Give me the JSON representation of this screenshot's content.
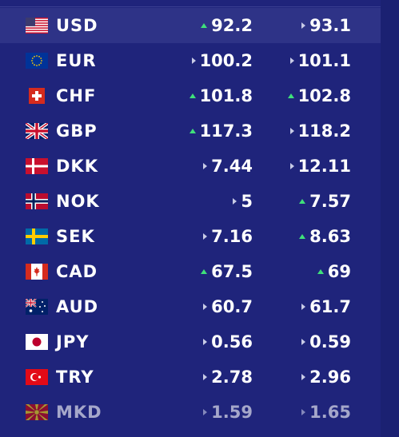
{
  "rates": [
    {
      "code": "USD",
      "flag": "flag-us-icon",
      "buy": "92.2",
      "buy_trend": "up",
      "sell": "93.1",
      "sell_trend": "flat",
      "highlighted": true
    },
    {
      "code": "EUR",
      "flag": "flag-eu-icon",
      "buy": "100.2",
      "buy_trend": "flat",
      "sell": "101.1",
      "sell_trend": "flat"
    },
    {
      "code": "CHF",
      "flag": "flag-ch-icon",
      "buy": "101.8",
      "buy_trend": "up",
      "sell": "102.8",
      "sell_trend": "up"
    },
    {
      "code": "GBP",
      "flag": "flag-gb-icon",
      "buy": "117.3",
      "buy_trend": "up",
      "sell": "118.2",
      "sell_trend": "flat"
    },
    {
      "code": "DKK",
      "flag": "flag-dk-icon",
      "buy": "7.44",
      "buy_trend": "flat",
      "sell": "12.11",
      "sell_trend": "flat"
    },
    {
      "code": "NOK",
      "flag": "flag-no-icon",
      "buy": "5",
      "buy_trend": "flat",
      "sell": "7.57",
      "sell_trend": "up"
    },
    {
      "code": "SEK",
      "flag": "flag-se-icon",
      "buy": "7.16",
      "buy_trend": "flat",
      "sell": "8.63",
      "sell_trend": "up"
    },
    {
      "code": "CAD",
      "flag": "flag-ca-icon",
      "buy": "67.5",
      "buy_trend": "up",
      "sell": "69",
      "sell_trend": "up"
    },
    {
      "code": "AUD",
      "flag": "flag-au-icon",
      "buy": "60.7",
      "buy_trend": "flat",
      "sell": "61.7",
      "sell_trend": "flat"
    },
    {
      "code": "JPY",
      "flag": "flag-jp-icon",
      "buy": "0.56",
      "buy_trend": "flat",
      "sell": "0.59",
      "sell_trend": "flat"
    },
    {
      "code": "TRY",
      "flag": "flag-tr-icon",
      "buy": "2.78",
      "buy_trend": "flat",
      "sell": "2.96",
      "sell_trend": "flat"
    },
    {
      "code": "MKD",
      "flag": "flag-mk-icon",
      "buy": "1.59",
      "buy_trend": "flat",
      "sell": "1.65",
      "sell_trend": "flat",
      "faded": true
    }
  ],
  "colors": {
    "background": "#1f247b",
    "highlight": "#2e3387",
    "up": "#3fe07a",
    "flat": "#c8cbe6"
  }
}
